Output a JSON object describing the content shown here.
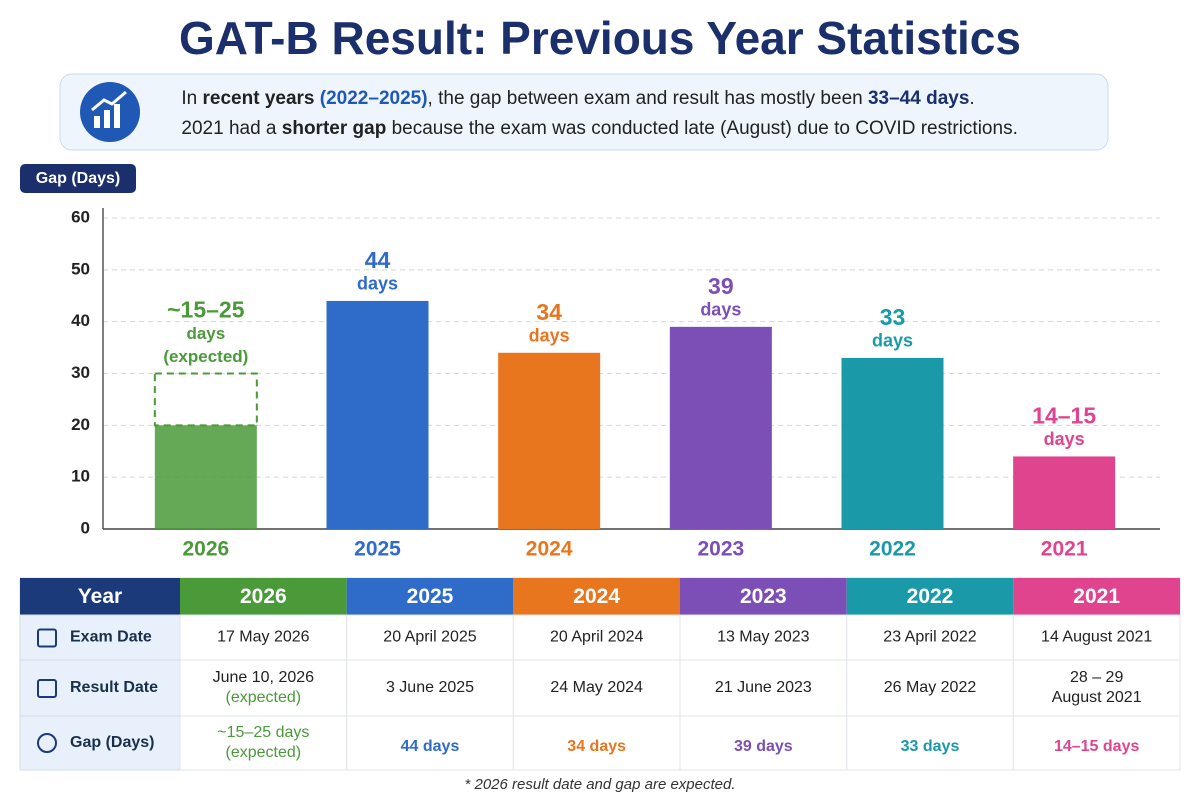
{
  "header": {
    "title": "GAT-B Result: Previous Year Statistics",
    "note": {
      "line1": [
        "In ",
        "recent years ",
        "(2022–2025)",
        ", the gap between exam and result has mostly been ",
        "33–44 days",
        "."
      ],
      "line2": [
        "2021 had a ",
        "shorter gap",
        " because the exam was conducted late (August) due to COVID restrictions."
      ]
    }
  },
  "chart_data": {
    "type": "bar",
    "y_label": "Gap (Days)",
    "categories": [
      "2026",
      "2025",
      "2024",
      "2023",
      "2022",
      "2021"
    ],
    "values": [
      20,
      44,
      34,
      39,
      33,
      14
    ],
    "dashed_values": [
      30,
      null,
      null,
      null,
      null,
      null
    ],
    "value_labels": [
      [
        "~15–25",
        "days",
        "(expected)"
      ],
      [
        "44",
        "days"
      ],
      [
        "34",
        "days"
      ],
      [
        "39",
        "days"
      ],
      [
        "33",
        "days"
      ],
      [
        "14–15",
        "days"
      ]
    ],
    "colors": [
      "#4a9a3a",
      "#2f6cc9",
      "#e8761f",
      "#7b4fb5",
      "#1a9aa8",
      "#e0448f"
    ],
    "ylim": [
      0,
      60
    ],
    "yticks": [
      0,
      10,
      20,
      30,
      40,
      50,
      60
    ],
    "grid": true
  },
  "table": {
    "header": [
      "Year",
      "2026",
      "2025",
      "2024",
      "2023",
      "2022",
      "2021"
    ],
    "rows": [
      {
        "label": "Exam Date",
        "cells": [
          [
            "17 May 2026"
          ],
          [
            "20 April 2025"
          ],
          [
            "20 April 2024"
          ],
          [
            "13 May 2023"
          ],
          [
            "23 April 2022"
          ],
          [
            "14 August 2021"
          ]
        ]
      },
      {
        "label": "Result Date",
        "cells": [
          [
            "June 10, 2026",
            "(expected)"
          ],
          [
            "3 June 2025"
          ],
          [
            "24 May 2024"
          ],
          [
            "21 June 2023"
          ],
          [
            "26 May 2022"
          ],
          [
            "28 – 29",
            "August 2021"
          ]
        ]
      },
      {
        "label": "Gap (Days)",
        "cells": [
          [
            "~15–25 days",
            "(expected)"
          ],
          [
            "44 days"
          ],
          [
            "34 days"
          ],
          [
            "39 days"
          ],
          [
            "33 days"
          ],
          [
            "14–15 days"
          ]
        ]
      }
    ]
  },
  "footnote": "* 2026 result date and gap are expected."
}
